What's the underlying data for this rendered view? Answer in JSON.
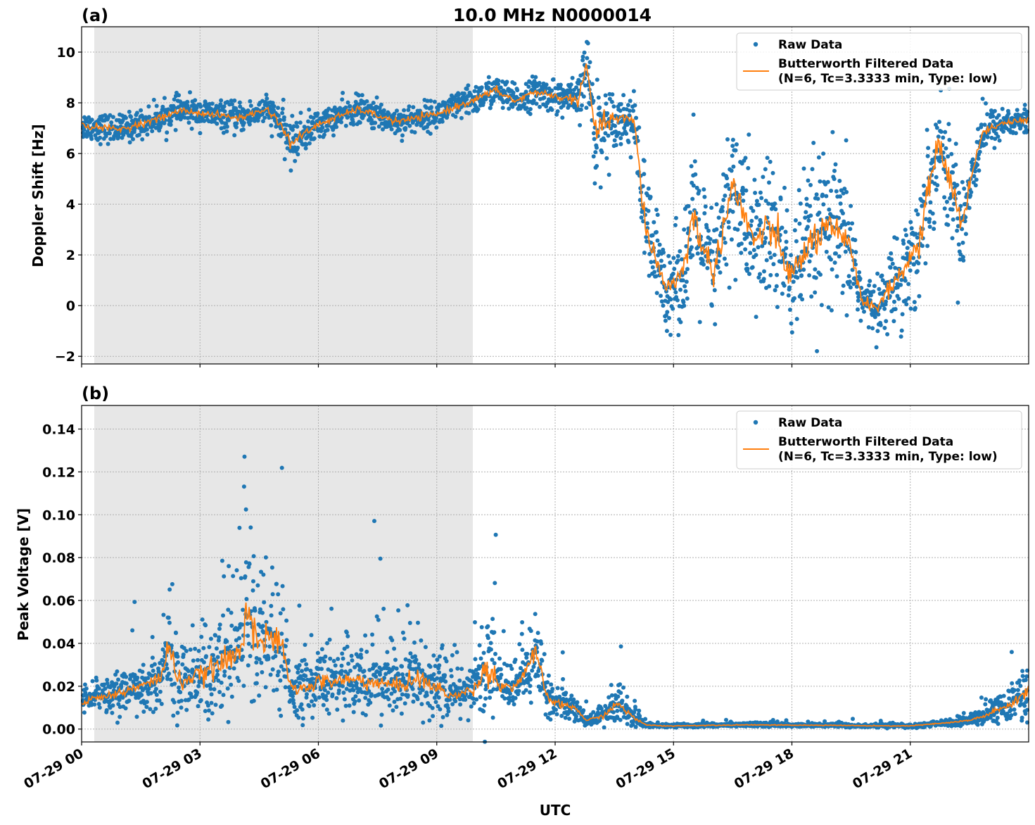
{
  "chart_data": [
    {
      "type": "scatter",
      "panel_label": "(a)",
      "title": "10.0 MHz N0000014",
      "xlabel": "",
      "ylabel": "Doppler Shift [Hz]",
      "ylim": [
        -2.3,
        11.0
      ],
      "yticks": [
        -2,
        0,
        2,
        4,
        6,
        8,
        10
      ],
      "ytick_labels": [
        "−2",
        "0",
        "2",
        "4",
        "6",
        "8",
        "10"
      ],
      "xlim_hours": [
        0,
        24
      ],
      "shaded_region_hours": [
        0.33,
        9.9
      ],
      "grid": true,
      "legend_position": "upper right",
      "series": [
        {
          "name": "Raw Data",
          "kind": "scatter",
          "color": "#1f77b4",
          "x_hours": [
            0,
            1,
            2,
            2.5,
            3,
            4,
            4.7,
            5,
            5.3,
            6,
            7,
            8,
            9,
            10,
            10.5,
            11,
            11.5,
            12,
            12.6,
            12.8,
            13,
            13.5,
            14,
            14.3,
            14.8,
            15.2,
            15.5,
            16,
            16.5,
            17,
            17.5,
            18,
            18.5,
            19,
            19.5,
            19.8,
            20.2,
            20.8,
            21.2,
            21.7,
            22,
            22.3,
            22.8,
            23.3,
            24
          ],
          "center": [
            7.1,
            6.95,
            7.4,
            7.7,
            7.6,
            7.4,
            7.75,
            7.25,
            6.4,
            7.15,
            7.75,
            7.25,
            7.55,
            8.15,
            8.5,
            8.05,
            8.45,
            8.25,
            8.1,
            9.5,
            6.9,
            7.4,
            7.3,
            3.0,
            0.7,
            1.2,
            3.5,
            1.2,
            4.8,
            2.6,
            3.0,
            1.1,
            2.6,
            3.0,
            2.2,
            0.1,
            0.0,
            1.4,
            2.3,
            6.5,
            5.0,
            3.2,
            6.8,
            7.2,
            7.3
          ],
          "spread": [
            0.55,
            0.55,
            0.55,
            0.55,
            0.55,
            0.55,
            0.55,
            0.7,
            0.9,
            0.55,
            0.55,
            0.55,
            0.55,
            0.6,
            0.6,
            0.6,
            0.6,
            0.6,
            0.8,
            1.5,
            2.0,
            1.0,
            1.0,
            2.5,
            1.6,
            2.0,
            3.0,
            2.2,
            3.0,
            3.0,
            3.0,
            2.5,
            3.0,
            3.0,
            2.5,
            1.0,
            1.0,
            2.0,
            2.5,
            1.8,
            2.5,
            2.0,
            1.0,
            0.6,
            0.6
          ]
        },
        {
          "name": "Butterworth Filtered Data\n(N=6, Tc=3.3333 min, Type: low)",
          "kind": "line",
          "color": "#ff7f0e",
          "x_hours": [
            0,
            1,
            2,
            2.5,
            3,
            4,
            4.7,
            5,
            5.3,
            6,
            7,
            8,
            9,
            10,
            10.5,
            11,
            11.5,
            12,
            12.6,
            12.8,
            13,
            13.5,
            14,
            14.3,
            14.8,
            15.2,
            15.5,
            16,
            16.5,
            17,
            17.5,
            18,
            18.5,
            19,
            19.5,
            19.8,
            20.2,
            20.8,
            21.2,
            21.7,
            22,
            22.3,
            22.8,
            23.3,
            24
          ],
          "values": [
            7.1,
            6.95,
            7.4,
            7.7,
            7.6,
            7.4,
            7.75,
            7.25,
            6.4,
            7.15,
            7.75,
            7.25,
            7.55,
            8.15,
            8.5,
            8.05,
            8.45,
            8.25,
            8.1,
            9.5,
            6.9,
            7.4,
            7.3,
            3.0,
            0.7,
            1.2,
            3.5,
            1.2,
            4.8,
            2.6,
            3.0,
            1.1,
            2.6,
            3.0,
            2.2,
            0.1,
            0.0,
            1.4,
            2.3,
            6.5,
            5.0,
            3.2,
            6.8,
            7.2,
            7.3
          ]
        }
      ]
    },
    {
      "type": "scatter",
      "panel_label": "(b)",
      "title": "",
      "xlabel": "UTC",
      "ylabel": "Peak Voltage [V]",
      "ylim": [
        -0.006,
        0.151
      ],
      "yticks": [
        0,
        0.02,
        0.04,
        0.06,
        0.08,
        0.1,
        0.12,
        0.14
      ],
      "ytick_labels": [
        "0.00",
        "0.02",
        "0.04",
        "0.06",
        "0.08",
        "0.10",
        "0.12",
        "0.14"
      ],
      "xlim_hours": [
        0,
        24
      ],
      "xtick_labels": [
        "07-29 00",
        "07-29 03",
        "07-29 06",
        "07-29 09",
        "07-29 12",
        "07-29 15",
        "07-29 18",
        "07-29 21"
      ],
      "shaded_region_hours": [
        0.33,
        9.9
      ],
      "grid": true,
      "legend_position": "upper right",
      "series": [
        {
          "name": "Raw Data",
          "kind": "scatter",
          "color": "#1f77b4",
          "x_hours": [
            0,
            0.5,
            1,
            1.5,
            2,
            2.2,
            2.5,
            3,
            3.5,
            4,
            4.2,
            4.5,
            5,
            5.3,
            5.5,
            6,
            7,
            8,
            8.5,
            9,
            9.5,
            10,
            10.3,
            10.6,
            11,
            11.5,
            11.8,
            12,
            12.5,
            12.8,
            13.2,
            13.6,
            14,
            14.3,
            14.7,
            15,
            16,
            17,
            18,
            19,
            20,
            21,
            22,
            22.5,
            23,
            23.5,
            24
          ],
          "center": [
            0.013,
            0.015,
            0.017,
            0.02,
            0.024,
            0.038,
            0.022,
            0.025,
            0.03,
            0.035,
            0.06,
            0.04,
            0.042,
            0.02,
            0.018,
            0.022,
            0.023,
            0.02,
            0.024,
            0.019,
            0.015,
            0.02,
            0.03,
            0.02,
            0.02,
            0.035,
            0.015,
            0.012,
            0.01,
            0.004,
            0.006,
            0.012,
            0.005,
            0.002,
            0.0015,
            0.0015,
            0.0018,
            0.002,
            0.0018,
            0.0018,
            0.0015,
            0.0015,
            0.003,
            0.004,
            0.007,
            0.011,
            0.018
          ],
          "spread": [
            0.008,
            0.008,
            0.009,
            0.011,
            0.014,
            0.03,
            0.018,
            0.018,
            0.025,
            0.03,
            0.045,
            0.03,
            0.03,
            0.012,
            0.012,
            0.016,
            0.016,
            0.015,
            0.02,
            0.014,
            0.01,
            0.015,
            0.03,
            0.013,
            0.01,
            0.02,
            0.01,
            0.007,
            0.006,
            0.003,
            0.004,
            0.008,
            0.004,
            0.001,
            0.0008,
            0.0008,
            0.0008,
            0.0008,
            0.0008,
            0.0008,
            0.0008,
            0.0008,
            0.0015,
            0.002,
            0.005,
            0.008,
            0.015
          ]
        },
        {
          "name": "Butterworth Filtered Data\n(N=6, Tc=3.3333 min, Type: low)",
          "kind": "line",
          "color": "#ff7f0e",
          "x_hours": [
            0,
            0.5,
            1,
            1.5,
            2,
            2.2,
            2.5,
            3,
            3.5,
            4,
            4.2,
            4.5,
            5,
            5.3,
            5.5,
            6,
            7,
            8,
            8.5,
            9,
            9.5,
            10,
            10.3,
            10.6,
            11,
            11.5,
            11.8,
            12,
            12.5,
            12.8,
            13.2,
            13.6,
            14,
            14.3,
            14.7,
            15,
            16,
            17,
            18,
            19,
            20,
            21,
            22,
            22.5,
            23,
            23.5,
            24
          ],
          "values": [
            0.013,
            0.015,
            0.017,
            0.02,
            0.024,
            0.038,
            0.022,
            0.025,
            0.03,
            0.035,
            0.06,
            0.04,
            0.042,
            0.02,
            0.018,
            0.022,
            0.023,
            0.02,
            0.024,
            0.019,
            0.015,
            0.02,
            0.03,
            0.02,
            0.02,
            0.035,
            0.015,
            0.012,
            0.01,
            0.004,
            0.006,
            0.012,
            0.005,
            0.002,
            0.0015,
            0.0015,
            0.0018,
            0.002,
            0.0018,
            0.0018,
            0.0015,
            0.0015,
            0.003,
            0.004,
            0.007,
            0.011,
            0.018
          ]
        }
      ]
    }
  ],
  "legend": {
    "raw_label": "Raw Data",
    "filtered_label_line1": "Butterworth Filtered Data",
    "filtered_label_line2": "(N=6, Tc=3.3333 min, Type: low)"
  }
}
